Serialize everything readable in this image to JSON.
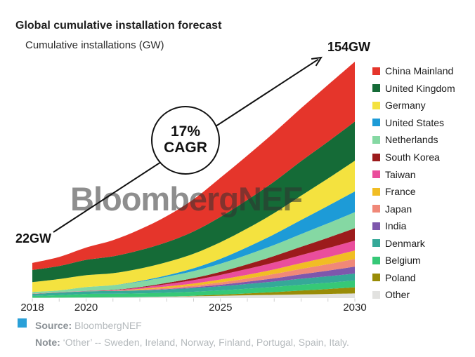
{
  "header": {
    "title": "Global cumulative installation forecast",
    "axis_title": "Cumulative installations (GW)"
  },
  "watermark": {
    "text": "BloombergNEF"
  },
  "annotations": {
    "start_label": "22GW",
    "end_label": "154GW",
    "cagr_line1": "17%",
    "cagr_line2": "CAGR"
  },
  "footer": {
    "source_label": "Source:",
    "source_value": "BloombergNEF",
    "note_label": "Note:",
    "note_value": "‘Other’ -- Sweden, Ireland, Norway, Finland, Portugal, Spain, Italy.",
    "source_icon_color": "#2aa0d8"
  },
  "chart_data": {
    "type": "area",
    "stacked": true,
    "title": "Global cumulative installation forecast",
    "ylabel": "Cumulative installations (GW)",
    "x": [
      2018,
      2019,
      2020,
      2021,
      2022,
      2023,
      2024,
      2025,
      2026,
      2027,
      2028,
      2029,
      2030
    ],
    "x_tick_labels": [
      "2018",
      "2020",
      "2025",
      "2030"
    ],
    "ylim": [
      0,
      154
    ],
    "grid": false,
    "legend_position": "right",
    "totals_labeled": {
      "2018": 22,
      "2030": 154,
      "cagr_percent": 17
    },
    "series_order": "top of stack first",
    "series": [
      {
        "name": "China Mainland",
        "color": "#e5352b",
        "values": [
          4.6,
          5.9,
          8.0,
          10.5,
          13.5,
          17.0,
          21.0,
          25.5,
          29.0,
          32.0,
          34.5,
          37.0,
          39.0
        ]
      },
      {
        "name": "United Kingdom",
        "color": "#156b37",
        "values": [
          7.9,
          8.5,
          10.0,
          11.0,
          12.0,
          13.0,
          14.5,
          16.5,
          18.5,
          20.5,
          22.5,
          24.0,
          25.5
        ]
      },
      {
        "name": "Germany",
        "color": "#f4e23f",
        "values": [
          6.4,
          7.4,
          7.7,
          7.8,
          8.1,
          8.6,
          9.5,
          10.8,
          12.2,
          13.8,
          15.8,
          17.8,
          20.0
        ]
      },
      {
        "name": "United States",
        "color": "#1d9bd7",
        "values": [
          0.0,
          0.0,
          0.0,
          0.1,
          0.4,
          0.9,
          1.8,
          3.2,
          5.0,
          7.0,
          9.2,
          11.4,
          13.5
        ]
      },
      {
        "name": "Netherlands",
        "color": "#85d8a3",
        "values": [
          1.1,
          1.1,
          2.5,
          3.0,
          3.5,
          4.0,
          4.6,
          5.3,
          6.2,
          7.2,
          8.3,
          9.4,
          10.5
        ]
      },
      {
        "name": "South Korea",
        "color": "#9c1b1c",
        "values": [
          0.1,
          0.1,
          0.1,
          0.2,
          0.4,
          0.8,
          1.3,
          2.0,
          3.0,
          4.2,
          5.4,
          6.7,
          8.0
        ]
      },
      {
        "name": "Taiwan",
        "color": "#ea4d9c",
        "values": [
          0.0,
          0.1,
          0.1,
          0.3,
          0.8,
          1.5,
          2.2,
          3.0,
          3.8,
          4.5,
          5.2,
          5.9,
          6.5
        ]
      },
      {
        "name": "France",
        "color": "#f1bd24",
        "values": [
          0.0,
          0.0,
          0.0,
          0.0,
          0.5,
          1.0,
          1.4,
          1.9,
          2.4,
          3.0,
          3.8,
          4.6,
          5.5
        ]
      },
      {
        "name": "Japan",
        "color": "#f08878",
        "values": [
          0.1,
          0.1,
          0.1,
          0.2,
          0.4,
          0.7,
          1.0,
          1.5,
          2.1,
          2.8,
          3.5,
          4.2,
          5.0
        ]
      },
      {
        "name": "India",
        "color": "#7e57ac",
        "values": [
          0.0,
          0.0,
          0.0,
          0.0,
          0.1,
          0.3,
          0.6,
          1.0,
          1.5,
          2.1,
          2.9,
          3.7,
          4.5
        ]
      },
      {
        "name": "Denmark",
        "color": "#35a998",
        "values": [
          1.3,
          1.7,
          1.7,
          1.8,
          1.9,
          2.1,
          2.4,
          2.7,
          3.1,
          3.5,
          3.9,
          4.2,
          4.5
        ]
      },
      {
        "name": "Belgium",
        "color": "#36c877",
        "values": [
          1.2,
          1.6,
          2.3,
          2.3,
          2.4,
          2.5,
          2.6,
          2.8,
          3.1,
          3.4,
          3.8,
          4.1,
          4.5
        ]
      },
      {
        "name": "Poland",
        "color": "#998c07",
        "values": [
          0.0,
          0.0,
          0.0,
          0.0,
          0.0,
          0.1,
          0.3,
          0.7,
          1.2,
          1.8,
          2.5,
          3.2,
          4.0
        ]
      },
      {
        "name": "Other",
        "color": "#e2e2e0",
        "values": [
          0.2,
          0.3,
          0.4,
          0.5,
          0.7,
          0.9,
          1.2,
          1.5,
          1.8,
          2.1,
          2.4,
          2.7,
          3.0
        ]
      }
    ]
  }
}
